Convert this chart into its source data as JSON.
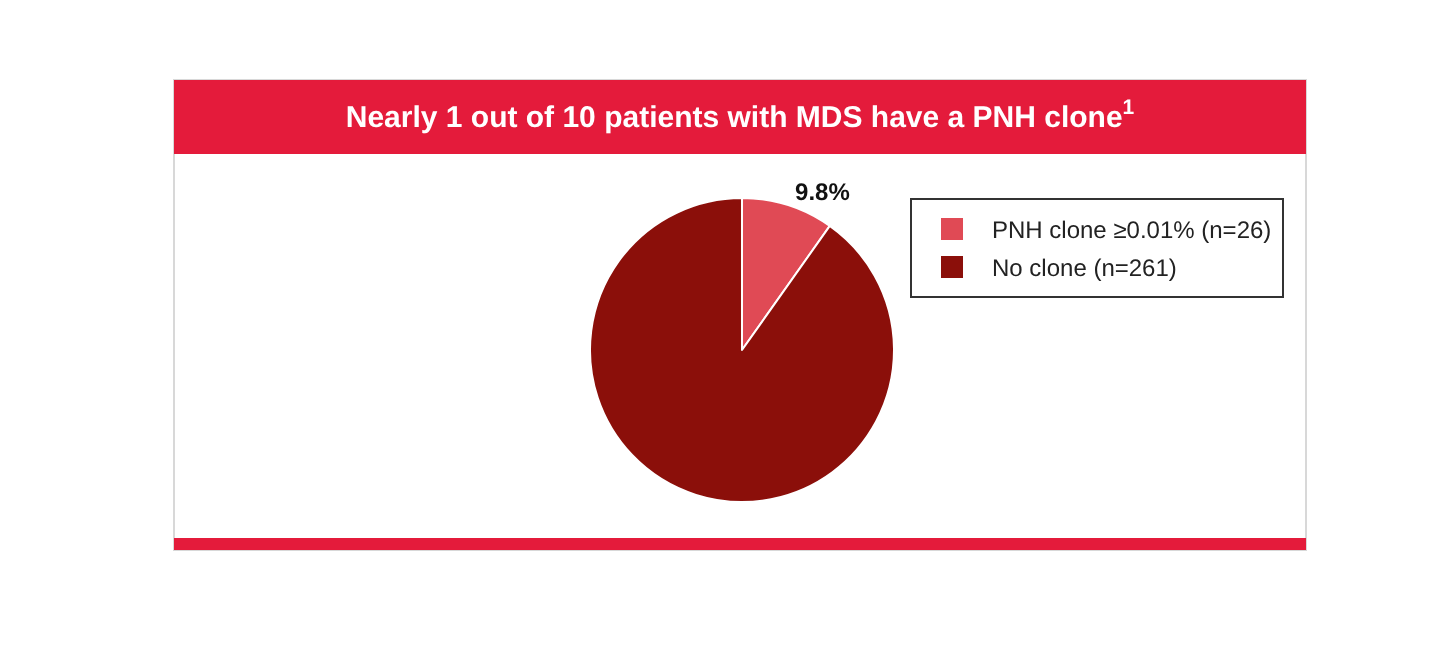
{
  "chart_data": {
    "type": "pie",
    "title": "Nearly 1 out of 10 patients with MDS have a PNH clone$^{1}$",
    "categories": [
      "PNH clone ≥0.01% (n=26)",
      "No clone (n=261)"
    ],
    "values": [
      9.8,
      90.2
    ],
    "colors": [
      "#e04a55",
      "#8b0f0a"
    ],
    "value_labels": [
      "9.8%",
      null
    ],
    "legend": "top right"
  }
}
